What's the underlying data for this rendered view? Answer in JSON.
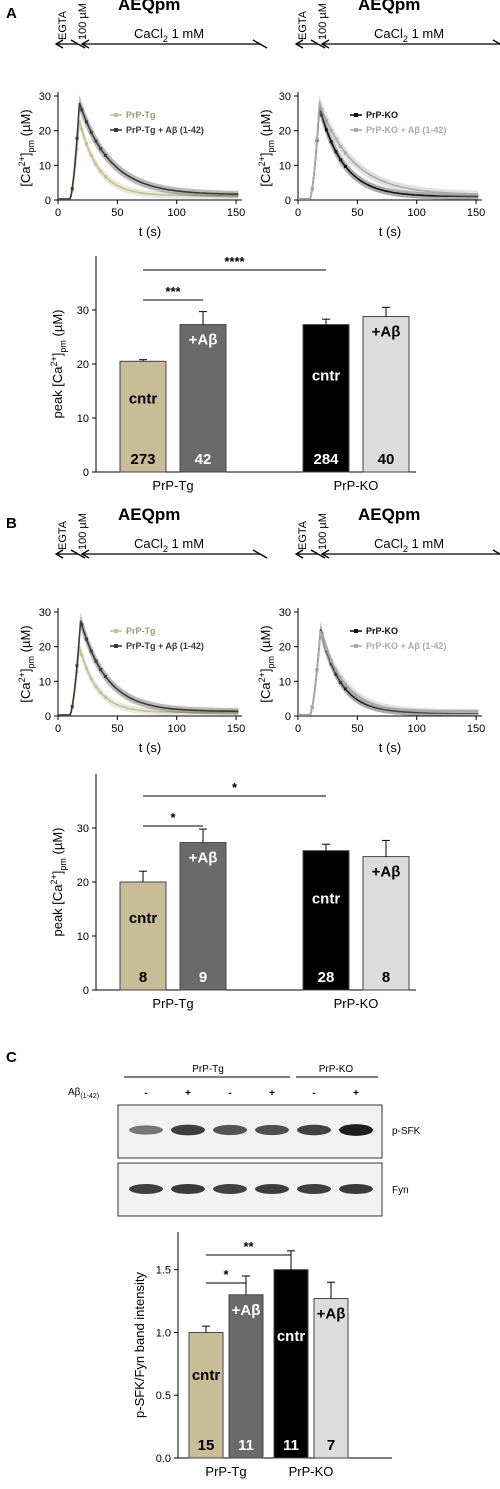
{
  "panels": [
    "A",
    "B",
    "C"
  ],
  "protocol": {
    "egta": "EGTA",
    "ionophore": "100 µM",
    "cacl": "CaCl",
    "cacl_sub": "2",
    "cacl_conc": "1 mM"
  },
  "title": "AEQpm",
  "trace_axes": {
    "xlabel": "t (s)",
    "ylabel": "[Ca",
    "ylabel_sup": "2+",
    "ylabel_end": "]",
    "ylabel_sub": "pm",
    "ylabel_unit": " (µM)",
    "xticks": [
      0,
      50,
      100,
      150
    ],
    "yticks": [
      0,
      10,
      20,
      30
    ],
    "xlim": [
      0,
      155
    ],
    "ylim": [
      0,
      30
    ]
  },
  "bar_axes_ca": {
    "ylabel": "peak [Ca",
    "ylabel_sup": "2+",
    "ylabel_end": "]",
    "ylabel_sub": "pm",
    "ylabel_unit": " (µM)",
    "yticks": [
      0,
      10,
      20,
      30
    ],
    "ylim": [
      0,
      40
    ]
  },
  "bar_axes_blot": {
    "ylabel": "p-SFK/Fyn band intensity",
    "yticks": [
      "0.0",
      "0.5",
      "1.0",
      "1.5"
    ],
    "ylim": [
      0,
      1.8
    ]
  },
  "groups": [
    "PrP-Tg",
    "PrP-KO"
  ],
  "bar_labels": {
    "ctrl": "cntr",
    "abeta": "+Aβ"
  },
  "colors": {
    "tg": "#c8bd98",
    "tg_ab": "#6a6a6a",
    "ko": "#000000",
    "ko_ab": "#dcdcdc",
    "tg_trace": "#c7bf98",
    "tg_ab_trace": "#3a3a3a",
    "ko_trace": "#111111",
    "ko_ab_trace": "#aaaaaa"
  },
  "chart_data": [
    {
      "type": "line",
      "panel": "A-left",
      "title": "AEQpm",
      "xlabel": "t (s)",
      "ylabel": "[Ca2+]pm (µM)",
      "series": [
        {
          "name": "PrP-Tg",
          "peak_t": 18,
          "peak": 23,
          "base": 1.2,
          "decay": 16
        },
        {
          "name": "PrP-Tg + Aβ (1-42)",
          "peak_t": 18,
          "peak": 28,
          "base": 1.5,
          "decay": 26
        }
      ]
    },
    {
      "type": "line",
      "panel": "A-right",
      "title": "AEQpm",
      "xlabel": "t (s)",
      "ylabel": "[Ca2+]pm (µM)",
      "series": [
        {
          "name": "PrP-KO",
          "peak_t": 18,
          "peak": 27,
          "base": 1.0,
          "decay": 20
        },
        {
          "name": "PrP-KO + Aβ (1-42)",
          "peak_t": 18,
          "peak": 28,
          "base": 1.5,
          "decay": 28
        }
      ]
    },
    {
      "type": "bar",
      "panel": "A-bar",
      "ylabel": "peak [Ca2+]pm (µM)",
      "ylim": [
        0,
        40
      ],
      "bars": [
        {
          "group": "PrP-Tg",
          "label": "cntr",
          "value": 20.5,
          "error": 0.3,
          "n": "273"
        },
        {
          "group": "PrP-Tg",
          "label": "+Aβ",
          "value": 27.3,
          "error": 2.4,
          "n": "42"
        },
        {
          "group": "PrP-KO",
          "label": "cntr",
          "value": 27.3,
          "error": 1.0,
          "n": "284"
        },
        {
          "group": "PrP-KO",
          "label": "+Aβ",
          "value": 28.8,
          "error": 1.7,
          "n": "40"
        }
      ],
      "significance": [
        {
          "from": 0,
          "to": 1,
          "label": "***"
        },
        {
          "from": 0,
          "to": 2,
          "label": "****"
        }
      ]
    },
    {
      "type": "line",
      "panel": "B-left",
      "title": "AEQpm",
      "xlabel": "t (s)",
      "ylabel": "[Ca2+]pm (µM)",
      "series": [
        {
          "name": "PrP-Tg",
          "peak_t": 18,
          "peak": 20,
          "base": 1.0,
          "decay": 15
        },
        {
          "name": "PrP-Tg + Aβ (1-42)",
          "peak_t": 19,
          "peak": 27.5,
          "base": 1.3,
          "decay": 22
        }
      ]
    },
    {
      "type": "line",
      "panel": "B-right",
      "title": "AEQpm",
      "xlabel": "t (s)",
      "ylabel": "[Ca2+]pm (µM)",
      "series": [
        {
          "name": "PrP-KO",
          "peak_t": 19,
          "peak": 25,
          "base": 0.8,
          "decay": 17
        },
        {
          "name": "PrP-KO + Aβ (1-42)",
          "peak_t": 19,
          "peak": 24.5,
          "base": 1.0,
          "decay": 20
        }
      ]
    },
    {
      "type": "bar",
      "panel": "B-bar",
      "ylabel": "peak [Ca2+]pm (µM)",
      "ylim": [
        0,
        40
      ],
      "bars": [
        {
          "group": "PrP-Tg",
          "label": "cntr",
          "value": 20.0,
          "error": 2.0,
          "n": "8"
        },
        {
          "group": "PrP-Tg",
          "label": "+Aβ",
          "value": 27.3,
          "error": 2.5,
          "n": "9"
        },
        {
          "group": "PrP-KO",
          "label": "cntr",
          "value": 25.8,
          "error": 1.2,
          "n": "28"
        },
        {
          "group": "PrP-KO",
          "label": "+Aβ",
          "value": 24.7,
          "error": 3.0,
          "n": "8"
        }
      ],
      "significance": [
        {
          "from": 0,
          "to": 1,
          "label": "*"
        },
        {
          "from": 0,
          "to": 2,
          "label": "*"
        }
      ]
    },
    {
      "type": "bar",
      "panel": "C-bar",
      "ylabel": "p-SFK/Fyn band intensity",
      "ylim": [
        0,
        1.8
      ],
      "bars": [
        {
          "group": "PrP-Tg",
          "label": "cntr",
          "value": 1.0,
          "error": 0.05,
          "n": "15"
        },
        {
          "group": "PrP-Tg",
          "label": "+Aβ",
          "value": 1.3,
          "error": 0.15,
          "n": "11"
        },
        {
          "group": "PrP-KO",
          "label": "cntr",
          "value": 1.5,
          "error": 0.15,
          "n": "11"
        },
        {
          "group": "PrP-KO",
          "label": "+Aβ",
          "value": 1.27,
          "error": 0.13,
          "n": "7"
        }
      ],
      "significance": [
        {
          "from": 0,
          "to": 1,
          "label": "*"
        },
        {
          "from": 0,
          "to": 2,
          "label": "**"
        }
      ]
    }
  ],
  "blot": {
    "treatment_label": "Aβ",
    "treatment_sub": "(1-42)",
    "lane_signs": [
      "-",
      "+",
      "-",
      "+",
      "-",
      "+"
    ],
    "bands": [
      "p-SFK",
      "Fyn"
    ],
    "pSFK_intensity": [
      0.55,
      0.8,
      0.7,
      0.72,
      0.78,
      0.95
    ],
    "fyn_intensity": [
      0.8,
      0.82,
      0.78,
      0.8,
      0.8,
      0.82
    ]
  }
}
